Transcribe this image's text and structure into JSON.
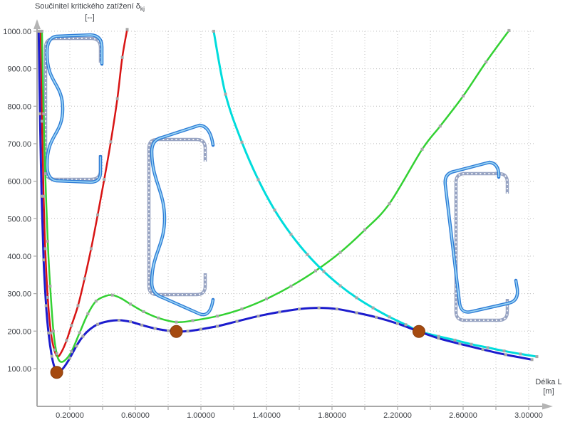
{
  "y_axis": {
    "title": "Součinitel kritického zatížení δ",
    "title_sub": "kj",
    "unit": "[--]",
    "tick_labels": [
      "1000.00",
      "900.00",
      "800.00",
      "700.00",
      "600.00",
      "500.00",
      "400.00",
      "300.00",
      "200.00",
      "100.00"
    ]
  },
  "x_axis": {
    "title": "Délka L",
    "unit": "[m]",
    "tick_labels": [
      "0.20000",
      "0.60000",
      "1.00000",
      "1.40000",
      "1.80000",
      "2.20000",
      "2.60000",
      "3.00000"
    ]
  },
  "chart_data": {
    "type": "line",
    "title": "",
    "xlabel": "Délka L [m]",
    "ylabel": "Součinitel kritického zatížení δkj [--]",
    "x_range": [
      0,
      3.1
    ],
    "y_range": [
      0,
      1000
    ],
    "grid": "dotted",
    "legend": "none",
    "marker": {
      "shape": "square",
      "color": "#a8a8a8",
      "size": 4
    },
    "series": [
      {
        "name": "red-curve",
        "color": "#d81414",
        "width": 2.5,
        "points": [
          [
            0.022,
            1000
          ],
          [
            0.03,
            760
          ],
          [
            0.04,
            560
          ],
          [
            0.05,
            420
          ],
          [
            0.065,
            290
          ],
          [
            0.085,
            195
          ],
          [
            0.105,
            150
          ],
          [
            0.125,
            132
          ],
          [
            0.15,
            145
          ],
          [
            0.18,
            175
          ],
          [
            0.21,
            215
          ],
          [
            0.25,
            268
          ],
          [
            0.29,
            340
          ],
          [
            0.33,
            420
          ],
          [
            0.37,
            510
          ],
          [
            0.41,
            605
          ],
          [
            0.45,
            705
          ],
          [
            0.49,
            820
          ],
          [
            0.52,
            930
          ],
          [
            0.55,
            1005
          ]
        ]
      },
      {
        "name": "green-curve",
        "color": "#33d133",
        "width": 2.5,
        "points": [
          [
            0.03,
            1000
          ],
          [
            0.04,
            780
          ],
          [
            0.05,
            620
          ],
          [
            0.065,
            440
          ],
          [
            0.08,
            320
          ],
          [
            0.1,
            200
          ],
          [
            0.12,
            140
          ],
          [
            0.14,
            119
          ],
          [
            0.17,
            122
          ],
          [
            0.21,
            145
          ],
          [
            0.26,
            196
          ],
          [
            0.31,
            246
          ],
          [
            0.36,
            280
          ],
          [
            0.42,
            294
          ],
          [
            0.46,
            296
          ],
          [
            0.51,
            288
          ],
          [
            0.57,
            272
          ],
          [
            0.65,
            252
          ],
          [
            0.74,
            235
          ],
          [
            0.85,
            224
          ],
          [
            0.95,
            228
          ],
          [
            1.1,
            240
          ],
          [
            1.25,
            259
          ],
          [
            1.4,
            286
          ],
          [
            1.55,
            320
          ],
          [
            1.7,
            361
          ],
          [
            1.85,
            410
          ],
          [
            2.0,
            470
          ],
          [
            2.15,
            540
          ],
          [
            2.35,
            685
          ],
          [
            2.46,
            747
          ],
          [
            2.6,
            827
          ],
          [
            2.74,
            918
          ],
          [
            2.88,
            1002
          ]
        ]
      },
      {
        "name": "cyan-curve",
        "color": "#00dcdc",
        "width": 3,
        "points": [
          [
            1.078,
            1000
          ],
          [
            1.15,
            832
          ],
          [
            1.25,
            704
          ],
          [
            1.35,
            604
          ],
          [
            1.45,
            523
          ],
          [
            1.55,
            458
          ],
          [
            1.65,
            404
          ],
          [
            1.75,
            359
          ],
          [
            1.85,
            321
          ],
          [
            1.95,
            289
          ],
          [
            2.05,
            262
          ],
          [
            2.15,
            238
          ],
          [
            2.25,
            217
          ],
          [
            2.33,
            200
          ],
          [
            2.45,
            186
          ],
          [
            2.55,
            176
          ],
          [
            2.65,
            165
          ],
          [
            2.75,
            156
          ],
          [
            2.85,
            147
          ],
          [
            2.95,
            139
          ],
          [
            3.05,
            132
          ]
        ]
      },
      {
        "name": "blue-curve",
        "color": "#1c1ccd",
        "width": 3,
        "points": [
          [
            0.01,
            1000
          ],
          [
            0.018,
            780
          ],
          [
            0.028,
            560
          ],
          [
            0.04,
            390
          ],
          [
            0.055,
            268
          ],
          [
            0.07,
            195
          ],
          [
            0.09,
            133
          ],
          [
            0.105,
            105
          ],
          [
            0.12,
            91
          ],
          [
            0.14,
            92
          ],
          [
            0.17,
            107
          ],
          [
            0.2,
            128
          ],
          [
            0.24,
            160
          ],
          [
            0.28,
            186
          ],
          [
            0.32,
            204
          ],
          [
            0.37,
            218
          ],
          [
            0.43,
            226
          ],
          [
            0.5,
            229
          ],
          [
            0.57,
            225
          ],
          [
            0.64,
            216
          ],
          [
            0.72,
            207
          ],
          [
            0.8,
            201
          ],
          [
            0.85,
            199
          ],
          [
            0.92,
            200
          ],
          [
            1.0,
            205
          ],
          [
            1.1,
            213
          ],
          [
            1.22,
            226
          ],
          [
            1.35,
            240
          ],
          [
            1.48,
            251
          ],
          [
            1.6,
            259
          ],
          [
            1.72,
            262
          ],
          [
            1.83,
            259
          ],
          [
            1.95,
            249
          ],
          [
            2.07,
            237
          ],
          [
            2.2,
            220
          ],
          [
            2.33,
            199
          ],
          [
            2.45,
            181
          ],
          [
            2.58,
            166
          ],
          [
            2.72,
            151
          ],
          [
            2.86,
            137
          ],
          [
            3.02,
            124
          ]
        ]
      }
    ],
    "highlight_points": {
      "name": "critical-minima",
      "color": "#a54a10",
      "edge_color": "#8a3d0c",
      "points": [
        [
          0.12,
          90
        ],
        [
          0.85,
          199
        ],
        [
          2.33,
          199
        ]
      ]
    }
  }
}
